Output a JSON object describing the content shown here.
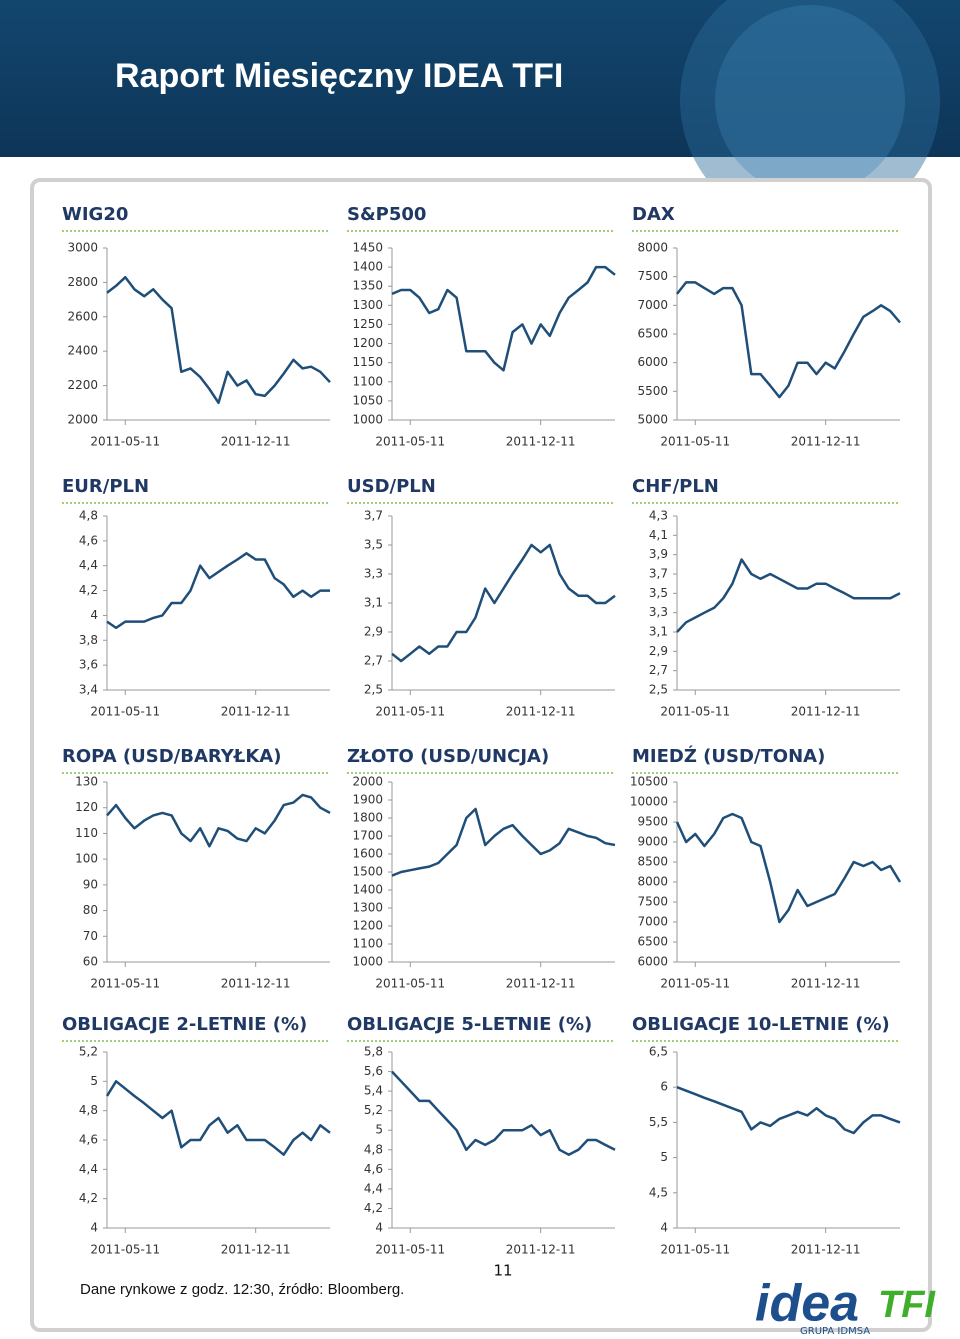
{
  "header": {
    "title": "Raport Miesięczny IDEA TFI"
  },
  "chart_data": [
    {
      "type": "line",
      "title": "WIG20",
      "color": "#1f4e79",
      "x": [
        "2011-04-11",
        "2011-04-26",
        "2011-05-11",
        "2011-05-26",
        "2011-06-11",
        "2011-06-26",
        "2011-07-11",
        "2011-07-26",
        "2011-08-11",
        "2011-08-26",
        "2011-09-11",
        "2011-09-26",
        "2011-10-11",
        "2011-10-26",
        "2011-11-11",
        "2011-11-26",
        "2011-12-11",
        "2011-12-26",
        "2012-01-11",
        "2012-01-26",
        "2012-02-11",
        "2012-02-26",
        "2012-03-11",
        "2012-03-26",
        "2012-04-11"
      ],
      "values": [
        2740,
        2780,
        2830,
        2760,
        2720,
        2760,
        2700,
        2650,
        2280,
        2300,
        2250,
        2180,
        2100,
        2280,
        2200,
        2230,
        2150,
        2140,
        2200,
        2270,
        2350,
        2300,
        2310,
        2280,
        2220
      ],
      "xlim": [
        "2011-04-11",
        "2012-04-11"
      ],
      "xticks": [
        "2011-05-11",
        "2011-12-11"
      ],
      "ylim": [
        2000,
        3000
      ],
      "yticks": [
        2000,
        2200,
        2400,
        2600,
        2800,
        3000
      ]
    },
    {
      "type": "line",
      "title": "S&P500",
      "color": "#1f4e79",
      "x": [
        "2011-04-11",
        "2011-04-26",
        "2011-05-11",
        "2011-05-26",
        "2011-06-11",
        "2011-06-26",
        "2011-07-11",
        "2011-07-26",
        "2011-08-11",
        "2011-08-26",
        "2011-09-11",
        "2011-09-26",
        "2011-10-11",
        "2011-10-26",
        "2011-11-11",
        "2011-11-26",
        "2011-12-11",
        "2011-12-26",
        "2012-01-11",
        "2012-01-26",
        "2012-02-11",
        "2012-02-26",
        "2012-03-11",
        "2012-03-26",
        "2012-04-11"
      ],
      "values": [
        1330,
        1340,
        1340,
        1320,
        1280,
        1290,
        1340,
        1320,
        1180,
        1180,
        1180,
        1150,
        1130,
        1230,
        1250,
        1200,
        1250,
        1220,
        1280,
        1320,
        1340,
        1360,
        1400,
        1400,
        1380
      ],
      "xlim": [
        "2011-04-11",
        "2012-04-11"
      ],
      "xticks": [
        "2011-05-11",
        "2011-12-11"
      ],
      "ylim": [
        1000,
        1450
      ],
      "yticks": [
        1000,
        1050,
        1100,
        1150,
        1200,
        1250,
        1300,
        1350,
        1400,
        1450
      ]
    },
    {
      "type": "line",
      "title": "DAX",
      "color": "#1f4e79",
      "x": [
        "2011-04-11",
        "2011-04-26",
        "2011-05-11",
        "2011-05-26",
        "2011-06-11",
        "2011-06-26",
        "2011-07-11",
        "2011-07-26",
        "2011-08-11",
        "2011-08-26",
        "2011-09-11",
        "2011-09-26",
        "2011-10-11",
        "2011-10-26",
        "2011-11-11",
        "2011-11-26",
        "2011-12-11",
        "2011-12-26",
        "2012-01-11",
        "2012-01-26",
        "2012-02-11",
        "2012-02-26",
        "2012-03-11",
        "2012-03-26",
        "2012-04-11"
      ],
      "values": [
        7200,
        7400,
        7400,
        7300,
        7200,
        7300,
        7300,
        7000,
        5800,
        5800,
        5600,
        5400,
        5600,
        6000,
        6000,
        5800,
        6000,
        5900,
        6200,
        6500,
        6800,
        6900,
        7000,
        6900,
        6700
      ],
      "xlim": [
        "2011-04-11",
        "2012-04-11"
      ],
      "xticks": [
        "2011-05-11",
        "2011-12-11"
      ],
      "ylim": [
        5000,
        8000
      ],
      "yticks": [
        5000,
        5500,
        6000,
        6500,
        7000,
        7500,
        8000
      ]
    },
    {
      "type": "line",
      "title": "EUR/PLN",
      "color": "#1f4e79",
      "x": [
        "2011-04-11",
        "2011-04-26",
        "2011-05-11",
        "2011-05-26",
        "2011-06-11",
        "2011-06-26",
        "2011-07-11",
        "2011-07-26",
        "2011-08-11",
        "2011-08-26",
        "2011-09-11",
        "2011-09-26",
        "2011-10-11",
        "2011-10-26",
        "2011-11-11",
        "2011-11-26",
        "2011-12-11",
        "2011-12-26",
        "2012-01-11",
        "2012-01-26",
        "2012-02-11",
        "2012-02-26",
        "2012-03-11",
        "2012-03-26",
        "2012-04-11"
      ],
      "values": [
        3.95,
        3.9,
        3.95,
        3.95,
        3.95,
        3.98,
        4.0,
        4.1,
        4.1,
        4.2,
        4.4,
        4.3,
        4.35,
        4.4,
        4.45,
        4.5,
        4.45,
        4.45,
        4.3,
        4.25,
        4.15,
        4.2,
        4.15,
        4.2,
        4.2
      ],
      "xlim": [
        "2011-04-11",
        "2012-04-11"
      ],
      "xticks": [
        "2011-05-11",
        "2011-12-11"
      ],
      "ylim": [
        3.4,
        4.8
      ],
      "yticks": [
        {
          "value": 3.4,
          "label": "3,4"
        },
        {
          "value": 3.6,
          "label": "3,6"
        },
        {
          "value": 3.8,
          "label": "3,8"
        },
        4,
        {
          "value": 4.2,
          "label": "4,2"
        },
        {
          "value": 4.4,
          "label": "4,4"
        },
        {
          "value": 4.6,
          "label": "4,6"
        },
        {
          "value": 4.8,
          "label": "4,8"
        }
      ]
    },
    {
      "type": "line",
      "title": "USD/PLN",
      "color": "#1f4e79",
      "x": [
        "2011-04-11",
        "2011-04-26",
        "2011-05-11",
        "2011-05-26",
        "2011-06-11",
        "2011-06-26",
        "2011-07-11",
        "2011-07-26",
        "2011-08-11",
        "2011-08-26",
        "2011-09-11",
        "2011-09-26",
        "2011-10-11",
        "2011-10-26",
        "2011-11-11",
        "2011-11-26",
        "2011-12-11",
        "2011-12-26",
        "2012-01-11",
        "2012-01-26",
        "2012-02-11",
        "2012-02-26",
        "2012-03-11",
        "2012-03-26",
        "2012-04-11"
      ],
      "values": [
        2.75,
        2.7,
        2.75,
        2.8,
        2.75,
        2.8,
        2.8,
        2.9,
        2.9,
        3.0,
        3.2,
        3.1,
        3.2,
        3.3,
        3.4,
        3.5,
        3.45,
        3.5,
        3.3,
        3.2,
        3.15,
        3.15,
        3.1,
        3.1,
        3.15
      ],
      "xlim": [
        "2011-04-11",
        "2012-04-11"
      ],
      "xticks": [
        "2011-05-11",
        "2011-12-11"
      ],
      "ylim": [
        2.5,
        3.7
      ],
      "yticks": [
        {
          "value": 2.5,
          "label": "2,5"
        },
        {
          "value": 2.7,
          "label": "2,7"
        },
        {
          "value": 2.9,
          "label": "2,9"
        },
        {
          "value": 3.1,
          "label": "3,1"
        },
        {
          "value": 3.3,
          "label": "3,3"
        },
        {
          "value": 3.5,
          "label": "3,5"
        },
        {
          "value": 3.7,
          "label": "3,7"
        }
      ]
    },
    {
      "type": "line",
      "title": "CHF/PLN",
      "color": "#1f4e79",
      "x": [
        "2011-04-11",
        "2011-04-26",
        "2011-05-11",
        "2011-05-26",
        "2011-06-11",
        "2011-06-26",
        "2011-07-11",
        "2011-07-26",
        "2011-08-11",
        "2011-08-26",
        "2011-09-11",
        "2011-09-26",
        "2011-10-11",
        "2011-10-26",
        "2011-11-11",
        "2011-11-26",
        "2011-12-11",
        "2011-12-26",
        "2012-01-11",
        "2012-01-26",
        "2012-02-11",
        "2012-02-26",
        "2012-03-11",
        "2012-03-26",
        "2012-04-11"
      ],
      "values": [
        3.1,
        3.2,
        3.25,
        3.3,
        3.35,
        3.45,
        3.6,
        3.85,
        3.7,
        3.65,
        3.7,
        3.65,
        3.6,
        3.55,
        3.55,
        3.6,
        3.6,
        3.55,
        3.5,
        3.45,
        3.45,
        3.45,
        3.45,
        3.45,
        3.5
      ],
      "xlim": [
        "2011-04-11",
        "2012-04-11"
      ],
      "xticks": [
        "2011-05-11",
        "2011-12-11"
      ],
      "ylim": [
        2.5,
        4.3
      ],
      "yticks": [
        {
          "value": 2.5,
          "label": "2,5"
        },
        {
          "value": 2.7,
          "label": "2,7"
        },
        {
          "value": 2.9,
          "label": "2,9"
        },
        {
          "value": 3.1,
          "label": "3,1"
        },
        {
          "value": 3.3,
          "label": "3,3"
        },
        {
          "value": 3.5,
          "label": "3,5"
        },
        {
          "value": 3.7,
          "label": "3,7"
        },
        {
          "value": 3.9,
          "label": "3,9"
        },
        {
          "value": 4.1,
          "label": "4,1"
        },
        {
          "value": 4.3,
          "label": "4,3"
        }
      ]
    },
    {
      "type": "line",
      "title": "ROPA (USD/BARYŁKA)",
      "color": "#1f4e79",
      "x": [
        "2011-04-11",
        "2011-04-26",
        "2011-05-11",
        "2011-05-26",
        "2011-06-11",
        "2011-06-26",
        "2011-07-11",
        "2011-07-26",
        "2011-08-11",
        "2011-08-26",
        "2011-09-11",
        "2011-09-26",
        "2011-10-11",
        "2011-10-26",
        "2011-11-11",
        "2011-11-26",
        "2011-12-11",
        "2011-12-26",
        "2012-01-11",
        "2012-01-26",
        "2012-02-11",
        "2012-02-26",
        "2012-03-11",
        "2012-03-26",
        "2012-04-11"
      ],
      "values": [
        117,
        121,
        116,
        112,
        115,
        117,
        118,
        117,
        110,
        107,
        112,
        105,
        112,
        111,
        108,
        107,
        112,
        110,
        115,
        121,
        122,
        125,
        124,
        120,
        118
      ],
      "xlim": [
        "2011-04-11",
        "2012-04-11"
      ],
      "xticks": [
        "2011-05-11",
        "2011-12-11"
      ],
      "ylim": [
        60,
        130
      ],
      "yticks": [
        60,
        70,
        80,
        90,
        100,
        110,
        120,
        130
      ]
    },
    {
      "type": "line",
      "title": "ZŁOTO (USD/UNCJA)",
      "color": "#1f4e79",
      "x": [
        "2011-04-11",
        "2011-04-26",
        "2011-05-11",
        "2011-05-26",
        "2011-06-11",
        "2011-06-26",
        "2011-07-11",
        "2011-07-26",
        "2011-08-11",
        "2011-08-26",
        "2011-09-11",
        "2011-09-26",
        "2011-10-11",
        "2011-10-26",
        "2011-11-11",
        "2011-11-26",
        "2011-12-11",
        "2011-12-26",
        "2012-01-11",
        "2012-01-26",
        "2012-02-11",
        "2012-02-26",
        "2012-03-11",
        "2012-03-26",
        "2012-04-11"
      ],
      "values": [
        1480,
        1500,
        1510,
        1520,
        1530,
        1550,
        1600,
        1650,
        1800,
        1850,
        1650,
        1700,
        1740,
        1760,
        1700,
        1650,
        1600,
        1620,
        1660,
        1740,
        1720,
        1700,
        1690,
        1660,
        1650
      ],
      "xlim": [
        "2011-04-11",
        "2012-04-11"
      ],
      "xticks": [
        "2011-05-11",
        "2011-12-11"
      ],
      "ylim": [
        1000,
        2000
      ],
      "yticks": [
        1000,
        1100,
        1200,
        1300,
        1400,
        1500,
        1600,
        1700,
        1800,
        1900,
        2000
      ]
    },
    {
      "type": "line",
      "title": "MIEDŹ (USD/TONA)",
      "color": "#1f4e79",
      "x": [
        "2011-04-11",
        "2011-04-26",
        "2011-05-11",
        "2011-05-26",
        "2011-06-11",
        "2011-06-26",
        "2011-07-11",
        "2011-07-26",
        "2011-08-11",
        "2011-08-26",
        "2011-09-11",
        "2011-09-26",
        "2011-10-11",
        "2011-10-26",
        "2011-11-11",
        "2011-11-26",
        "2011-12-11",
        "2011-12-26",
        "2012-01-11",
        "2012-01-26",
        "2012-02-11",
        "2012-02-26",
        "2012-03-11",
        "2012-03-26",
        "2012-04-11"
      ],
      "values": [
        9500,
        9000,
        9200,
        8900,
        9200,
        9600,
        9700,
        9600,
        9000,
        8900,
        8000,
        7000,
        7300,
        7800,
        7400,
        7500,
        7600,
        7700,
        8100,
        8500,
        8400,
        8500,
        8300,
        8400,
        8000
      ],
      "xlim": [
        "2011-04-11",
        "2012-04-11"
      ],
      "xticks": [
        "2011-05-11",
        "2011-12-11"
      ],
      "ylim": [
        6000,
        10500
      ],
      "yticks": [
        6000,
        6500,
        7000,
        7500,
        8000,
        8500,
        9000,
        9500,
        10000,
        10500
      ]
    },
    {
      "type": "line",
      "title": "OBLIGACJE 2-LETNIE (%)",
      "color": "#1f4e79",
      "x": [
        "2011-04-11",
        "2011-04-26",
        "2011-05-11",
        "2011-05-26",
        "2011-06-11",
        "2011-06-26",
        "2011-07-11",
        "2011-07-26",
        "2011-08-11",
        "2011-08-26",
        "2011-09-11",
        "2011-09-26",
        "2011-10-11",
        "2011-10-26",
        "2011-11-11",
        "2011-11-26",
        "2011-12-11",
        "2011-12-26",
        "2012-01-11",
        "2012-01-26",
        "2012-02-11",
        "2012-02-26",
        "2012-03-11",
        "2012-03-26",
        "2012-04-11"
      ],
      "values": [
        4.9,
        5.0,
        4.95,
        4.9,
        4.85,
        4.8,
        4.75,
        4.8,
        4.55,
        4.6,
        4.6,
        4.7,
        4.75,
        4.65,
        4.7,
        4.6,
        4.6,
        4.6,
        4.55,
        4.5,
        4.6,
        4.65,
        4.6,
        4.7,
        4.65
      ],
      "xlim": [
        "2011-04-11",
        "2012-04-11"
      ],
      "xticks": [
        "2011-05-11",
        "2011-12-11"
      ],
      "ylim": [
        4,
        5.2
      ],
      "yticks": [
        4,
        {
          "value": 4.2,
          "label": "4,2"
        },
        {
          "value": 4.4,
          "label": "4,4"
        },
        {
          "value": 4.6,
          "label": "4,6"
        },
        {
          "value": 4.8,
          "label": "4,8"
        },
        5,
        {
          "value": 5.2,
          "label": "5,2"
        }
      ]
    },
    {
      "type": "line",
      "title": "OBLIGACJE 5-LETNIE (%)",
      "color": "#1f4e79",
      "x": [
        "2011-04-11",
        "2011-04-26",
        "2011-05-11",
        "2011-05-26",
        "2011-06-11",
        "2011-06-26",
        "2011-07-11",
        "2011-07-26",
        "2011-08-11",
        "2011-08-26",
        "2011-09-11",
        "2011-09-26",
        "2011-10-11",
        "2011-10-26",
        "2011-11-11",
        "2011-11-26",
        "2011-12-11",
        "2011-12-26",
        "2012-01-11",
        "2012-01-26",
        "2012-02-11",
        "2012-02-26",
        "2012-03-11",
        "2012-03-26",
        "2012-04-11"
      ],
      "values": [
        5.6,
        5.5,
        5.4,
        5.3,
        5.3,
        5.2,
        5.1,
        5.0,
        4.8,
        4.9,
        4.85,
        4.9,
        5.0,
        5.0,
        5.0,
        5.05,
        4.95,
        5.0,
        4.8,
        4.75,
        4.8,
        4.9,
        4.9,
        4.85,
        4.8
      ],
      "xlim": [
        "2011-04-11",
        "2012-04-11"
      ],
      "xticks": [
        "2011-05-11",
        "2011-12-11"
      ],
      "ylim": [
        4,
        5.8
      ],
      "yticks": [
        4,
        {
          "value": 4.2,
          "label": "4,2"
        },
        {
          "value": 4.4,
          "label": "4,4"
        },
        {
          "value": 4.6,
          "label": "4,6"
        },
        {
          "value": 4.8,
          "label": "4,8"
        },
        5,
        {
          "value": 5.2,
          "label": "5,2"
        },
        {
          "value": 5.4,
          "label": "5,4"
        },
        {
          "value": 5.6,
          "label": "5,6"
        },
        {
          "value": 5.8,
          "label": "5,8"
        }
      ]
    },
    {
      "type": "line",
      "title": "OBLIGACJE 10-LETNIE (%)",
      "color": "#1f4e79",
      "x": [
        "2011-04-11",
        "2011-04-26",
        "2011-05-11",
        "2011-05-26",
        "2011-06-11",
        "2011-06-26",
        "2011-07-11",
        "2011-07-26",
        "2011-08-11",
        "2011-08-26",
        "2011-09-11",
        "2011-09-26",
        "2011-10-11",
        "2011-10-26",
        "2011-11-11",
        "2011-11-26",
        "2011-12-11",
        "2011-12-26",
        "2012-01-11",
        "2012-01-26",
        "2012-02-11",
        "2012-02-26",
        "2012-03-11",
        "2012-03-26",
        "2012-04-11"
      ],
      "values": [
        6.0,
        5.95,
        5.9,
        5.85,
        5.8,
        5.75,
        5.7,
        5.65,
        5.4,
        5.5,
        5.45,
        5.55,
        5.6,
        5.65,
        5.6,
        5.7,
        5.6,
        5.55,
        5.4,
        5.35,
        5.5,
        5.6,
        5.6,
        5.55,
        5.5
      ],
      "xlim": [
        "2011-04-11",
        "2012-04-11"
      ],
      "xticks": [
        "2011-05-11",
        "2011-12-11"
      ],
      "ylim": [
        4,
        6.5
      ],
      "yticks": [
        4,
        {
          "value": 4.5,
          "label": "4,5"
        },
        5,
        {
          "value": 5.5,
          "label": "5,5"
        },
        6,
        {
          "value": 6.5,
          "label": "6,5"
        }
      ]
    }
  ],
  "footer": {
    "source": "Dane rynkowe z godz. 12:30, źródło: Bloomberg.",
    "page": "11",
    "logo": "idea",
    "logo_tfi": "TFI",
    "logo_group": "GRUPA IDMSA"
  }
}
